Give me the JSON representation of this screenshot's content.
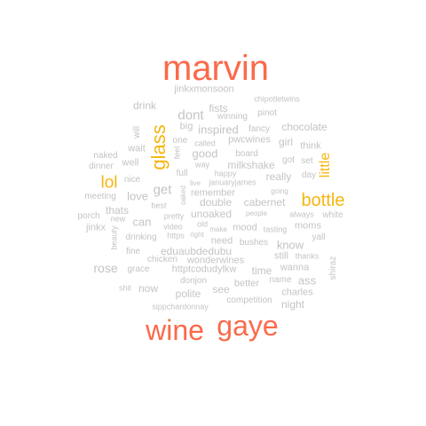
{
  "colors": {
    "large": "#fa6a4a",
    "medium": "#f6b60f",
    "small": "#c4c4c4"
  },
  "words": [
    {
      "text": "marvin",
      "tier": "large"
    },
    {
      "text": "wine",
      "tier": "large"
    },
    {
      "text": "gaye",
      "tier": "large"
    },
    {
      "text": "glass",
      "tier": "medium"
    },
    {
      "text": "bottle",
      "tier": "medium"
    },
    {
      "text": "lol",
      "tier": "medium"
    },
    {
      "text": "little",
      "tier": "medium"
    },
    {
      "text": "jinkxmonsoon",
      "tier": "small"
    },
    {
      "text": "chipotletwins",
      "tier": "small"
    },
    {
      "text": "drink",
      "tier": "small"
    },
    {
      "text": "fists",
      "tier": "small"
    },
    {
      "text": "dont",
      "tier": "small"
    },
    {
      "text": "winning",
      "tier": "small"
    },
    {
      "text": "pinot",
      "tier": "small"
    },
    {
      "text": "big",
      "tier": "small"
    },
    {
      "text": "inspired",
      "tier": "small"
    },
    {
      "text": "fancy",
      "tier": "small"
    },
    {
      "text": "chocolate",
      "tier": "small"
    },
    {
      "text": "will",
      "tier": "small"
    },
    {
      "text": "one",
      "tier": "small"
    },
    {
      "text": "called",
      "tier": "small"
    },
    {
      "text": "pwcwines",
      "tier": "small"
    },
    {
      "text": "girl",
      "tier": "small"
    },
    {
      "text": "think",
      "tier": "small"
    },
    {
      "text": "wait",
      "tier": "small"
    },
    {
      "text": "good",
      "tier": "small"
    },
    {
      "text": "board",
      "tier": "small"
    },
    {
      "text": "feel",
      "tier": "small"
    },
    {
      "text": "naked",
      "tier": "small"
    },
    {
      "text": "way",
      "tier": "small"
    },
    {
      "text": "milkshake",
      "tier": "small"
    },
    {
      "text": "got",
      "tier": "small"
    },
    {
      "text": "set",
      "tier": "small"
    },
    {
      "text": "well",
      "tier": "small"
    },
    {
      "text": "dinner",
      "tier": "small"
    },
    {
      "text": "happy",
      "tier": "small"
    },
    {
      "text": "full",
      "tier": "small"
    },
    {
      "text": "really",
      "tier": "small"
    },
    {
      "text": "day",
      "tier": "small"
    },
    {
      "text": "nice",
      "tier": "small"
    },
    {
      "text": "live",
      "tier": "small"
    },
    {
      "text": "januaryjames",
      "tier": "small"
    },
    {
      "text": "get",
      "tier": "small"
    },
    {
      "text": "going",
      "tier": "small"
    },
    {
      "text": "meeting",
      "tier": "small"
    },
    {
      "text": "oaked",
      "tier": "small"
    },
    {
      "text": "remember",
      "tier": "small"
    },
    {
      "text": "love",
      "tier": "small"
    },
    {
      "text": "double",
      "tier": "small"
    },
    {
      "text": "cabernet",
      "tier": "small"
    },
    {
      "text": "thats",
      "tier": "small"
    },
    {
      "text": "best",
      "tier": "small"
    },
    {
      "text": "porch",
      "tier": "small"
    },
    {
      "text": "new",
      "tier": "small"
    },
    {
      "text": "can",
      "tier": "small"
    },
    {
      "text": "pretty",
      "tier": "small"
    },
    {
      "text": "unoaked",
      "tier": "small"
    },
    {
      "text": "people",
      "tier": "small"
    },
    {
      "text": "always",
      "tier": "small"
    },
    {
      "text": "white",
      "tier": "small"
    },
    {
      "text": "jinkx",
      "tier": "small"
    },
    {
      "text": "video",
      "tier": "small"
    },
    {
      "text": "old",
      "tier": "small"
    },
    {
      "text": "make",
      "tier": "small"
    },
    {
      "text": "mood",
      "tier": "small"
    },
    {
      "text": "tasting",
      "tier": "small"
    },
    {
      "text": "moms",
      "tier": "small"
    },
    {
      "text": "beauty",
      "tier": "small"
    },
    {
      "text": "drinking",
      "tier": "small"
    },
    {
      "text": "https",
      "tier": "small"
    },
    {
      "text": "right",
      "tier": "small"
    },
    {
      "text": "need",
      "tier": "small"
    },
    {
      "text": "yall",
      "tier": "small"
    },
    {
      "text": "bushes",
      "tier": "small"
    },
    {
      "text": "know",
      "tier": "small"
    },
    {
      "text": "fine",
      "tier": "small"
    },
    {
      "text": "eduaubdedubu",
      "tier": "small"
    },
    {
      "text": "still",
      "tier": "small"
    },
    {
      "text": "thanks",
      "tier": "small"
    },
    {
      "text": "rose",
      "tier": "small"
    },
    {
      "text": "chicken",
      "tier": "small"
    },
    {
      "text": "wonderwines",
      "tier": "small"
    },
    {
      "text": "shiraz",
      "tier": "small"
    },
    {
      "text": "grace",
      "tier": "small"
    },
    {
      "text": "httptcodudylkw",
      "tier": "small"
    },
    {
      "text": "time",
      "tier": "small"
    },
    {
      "text": "wanna",
      "tier": "small"
    },
    {
      "text": "donjon",
      "tier": "small"
    },
    {
      "text": "name",
      "tier": "small"
    },
    {
      "text": "ass",
      "tier": "small"
    },
    {
      "text": "better",
      "tier": "small"
    },
    {
      "text": "shit",
      "tier": "small"
    },
    {
      "text": "now",
      "tier": "small"
    },
    {
      "text": "see",
      "tier": "small"
    },
    {
      "text": "charles",
      "tier": "small"
    },
    {
      "text": "polite",
      "tier": "small"
    },
    {
      "text": "competition",
      "tier": "small"
    },
    {
      "text": "night",
      "tier": "small"
    },
    {
      "text": "sippchardonnay",
      "tier": "small"
    }
  ]
}
